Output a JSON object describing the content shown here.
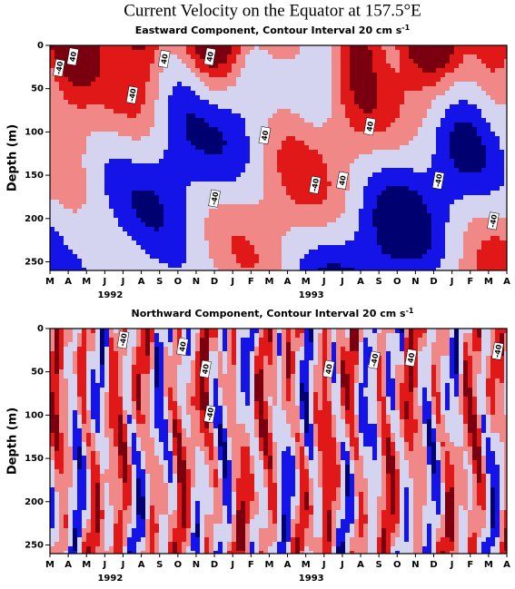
{
  "chart_data": [
    {
      "type": "contour",
      "title": "Current Velocity on the Equator at 157.5°E",
      "subtitle": "Eastward Component, Contour Interval 20 cm s",
      "subtitle_superscript": "-1",
      "ylabel": "Depth (m)",
      "categories": [
        "M",
        "A",
        "M",
        "J",
        "J",
        "A",
        "S",
        "O",
        "N",
        "D",
        "J",
        "F",
        "M",
        "A",
        "M",
        "J",
        "J",
        "A",
        "S",
        "O",
        "N",
        "D",
        "J",
        "F",
        "M",
        "A"
      ],
      "years": [
        "1992",
        "1993"
      ],
      "ylim": [
        0,
        260
      ],
      "yticks": [
        0,
        50,
        100,
        150,
        200,
        250
      ],
      "contour_labels": [
        "-40",
        "40",
        "-40",
        "40",
        "40",
        "-40",
        "40",
        "-40",
        "40",
        "40",
        "-40",
        "-40"
      ]
    },
    {
      "type": "contour",
      "subtitle": "Northward Component, Contour Interval 20 cm s",
      "subtitle_superscript": "-1",
      "ylabel": "Depth (m)",
      "categories": [
        "M",
        "A",
        "M",
        "J",
        "J",
        "A",
        "S",
        "O",
        "N",
        "D",
        "J",
        "F",
        "M",
        "A",
        "M",
        "J",
        "J",
        "A",
        "S",
        "O",
        "N",
        "D",
        "J",
        "F",
        "M",
        "A"
      ],
      "years": [
        "1992",
        "1993"
      ],
      "ylim": [
        0,
        260
      ],
      "yticks": [
        0,
        50,
        100,
        150,
        200,
        250
      ],
      "contour_labels": [
        "-40",
        "40",
        "40",
        "-40",
        "40",
        "-40",
        "40",
        "-40"
      ]
    }
  ]
}
